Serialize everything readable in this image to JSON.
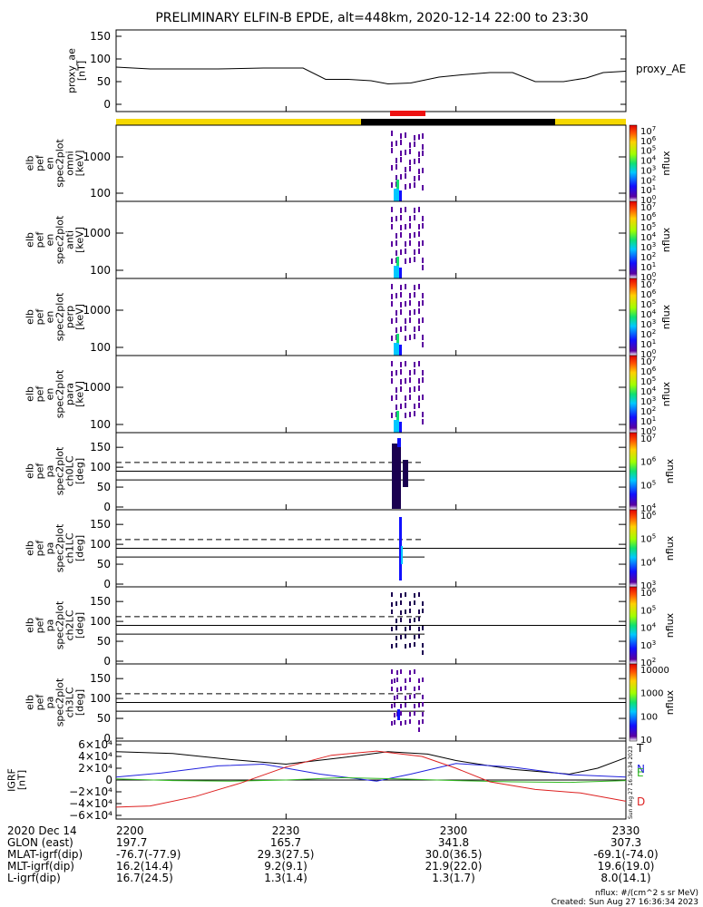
{
  "title": "PRELIMINARY ELFIN-B EPDE, alt=448km, 2020-12-14 22:00 to 23:30",
  "colors": {
    "sunlight": "#f5d800",
    "shadow": "#000000",
    "science": "#ee1111"
  },
  "panels": [
    {
      "id": "proxy_ae",
      "ylabel": [
        "proxy_ae",
        "[nT]"
      ],
      "yticks": [
        "150",
        "100",
        "50",
        "0"
      ],
      "right_label": "proxy_AE"
    },
    {
      "id": "omni",
      "ylabel": [
        "elb",
        "pef",
        "en",
        "spec2plot",
        "omni",
        "[keV]"
      ],
      "yticks": [
        "1000",
        "100"
      ],
      "cbar_ticks": [
        "10",
        "10",
        "10",
        "10",
        "10",
        "10",
        "10",
        "10"
      ],
      "cbar_exps": [
        "7",
        "6",
        "5",
        "4",
        "3",
        "2",
        "1",
        "0"
      ],
      "cbar_label": "nflux"
    },
    {
      "id": "anti",
      "ylabel": [
        "elb",
        "pef",
        "en",
        "spec2plot",
        "anti",
        "[keV]"
      ],
      "yticks": [
        "1000",
        "100"
      ],
      "cbar_ticks": [
        "10",
        "10",
        "10",
        "10",
        "10",
        "10",
        "10",
        "10"
      ],
      "cbar_exps": [
        "7",
        "6",
        "5",
        "4",
        "3",
        "2",
        "1",
        "0"
      ],
      "cbar_label": "nflux"
    },
    {
      "id": "perp",
      "ylabel": [
        "elb",
        "pef",
        "en",
        "spec2plot",
        "perp",
        "[keV]"
      ],
      "yticks": [
        "1000",
        "100"
      ],
      "cbar_ticks": [
        "10",
        "10",
        "10",
        "10",
        "10",
        "10",
        "10",
        "10"
      ],
      "cbar_exps": [
        "7",
        "6",
        "5",
        "4",
        "3",
        "2",
        "1",
        "0"
      ],
      "cbar_label": "nflux"
    },
    {
      "id": "para",
      "ylabel": [
        "elb",
        "pef",
        "en",
        "spec2plot",
        "para",
        "[keV]"
      ],
      "yticks": [
        "1000",
        "100"
      ],
      "cbar_ticks": [
        "10",
        "10",
        "10",
        "10",
        "10",
        "10",
        "10",
        "10"
      ],
      "cbar_exps": [
        "7",
        "6",
        "5",
        "4",
        "3",
        "2",
        "1",
        "0"
      ],
      "cbar_label": "nflux"
    },
    {
      "id": "ch0LC",
      "ylabel": [
        "elb",
        "pef",
        "pa",
        "spec2plot",
        "ch0LC",
        "[deg]"
      ],
      "yticks": [
        "150",
        "100",
        "50",
        "0"
      ],
      "cbar_ticks": [
        "10",
        "10",
        "10",
        "10"
      ],
      "cbar_exps": [
        "7",
        "6",
        "5",
        "4"
      ],
      "cbar_label": "nflux"
    },
    {
      "id": "ch1LC",
      "ylabel": [
        "elb",
        "pef",
        "pa",
        "spec2plot",
        "ch1LC",
        "[deg]"
      ],
      "yticks": [
        "150",
        "100",
        "50",
        "0"
      ],
      "cbar_ticks": [
        "10",
        "10",
        "10",
        "10"
      ],
      "cbar_exps": [
        "6",
        "5",
        "4",
        "3"
      ],
      "cbar_label": "nflux"
    },
    {
      "id": "ch2LC",
      "ylabel": [
        "elb",
        "pef",
        "pa",
        "spec2plot",
        "ch2LC",
        "[deg]"
      ],
      "yticks": [
        "150",
        "100",
        "50",
        "0"
      ],
      "cbar_ticks": [
        "10",
        "10",
        "10",
        "10",
        "10"
      ],
      "cbar_exps": [
        "6",
        "5",
        "4",
        "3",
        "2"
      ],
      "cbar_label": "nflux"
    },
    {
      "id": "ch3LC",
      "ylabel": [
        "elb",
        "pef",
        "pa",
        "spec2plot",
        "ch3LC",
        "[deg]"
      ],
      "yticks": [
        "10000",
        "1000",
        "100",
        "10"
      ],
      "yticks_left": [
        "150",
        "100",
        "50",
        "0"
      ],
      "cbar_label": "nflux"
    },
    {
      "id": "igrf",
      "ylabel": [
        "IGRF",
        "[nT]"
      ],
      "yticks": [
        "6×10⁴",
        "4×10⁴",
        "2×10⁴",
        "0",
        "−2×10⁴",
        "−4×10⁴",
        "−6×10⁴"
      ],
      "legend": [
        "T",
        "N",
        "E",
        "D"
      ]
    }
  ],
  "chart_data": {
    "type": "line",
    "title": "PRELIMINARY ELFIN-B EPDE, alt=448km, 2020-12-14 22:00 to 23:30",
    "x_ticks": [
      "2200",
      "2230",
      "2300",
      "2330"
    ],
    "x_range_minutes": [
      0,
      90
    ],
    "proxy_ae": {
      "ylim": [
        0,
        160
      ],
      "minutes": [
        0,
        3,
        6,
        10,
        18,
        26,
        33,
        37,
        41,
        45,
        48,
        52,
        57,
        61,
        66,
        70,
        74,
        79,
        83,
        86,
        90
      ],
      "values": [
        82,
        80,
        78,
        78,
        78,
        80,
        80,
        55,
        55,
        52,
        45,
        47,
        60,
        65,
        70,
        70,
        50,
        50,
        58,
        70,
        73
      ]
    },
    "igrf_series": [
      {
        "name": "T",
        "color": "#000000",
        "minutes": [
          0,
          10,
          20,
          30,
          40,
          48,
          55,
          60,
          70,
          80,
          85,
          90
        ],
        "values": [
          48000,
          45000,
          35000,
          27000,
          38000,
          48000,
          44000,
          33000,
          18000,
          10000,
          20000,
          38000
        ]
      },
      {
        "name": "N",
        "color": "#2020dd",
        "minutes": [
          0,
          8,
          18,
          26,
          36,
          46,
          52,
          60,
          70,
          80,
          90
        ],
        "values": [
          5000,
          12000,
          24000,
          27000,
          10000,
          -2000,
          10000,
          28000,
          22000,
          9000,
          5000
        ]
      },
      {
        "name": "E",
        "color": "#33bb22",
        "minutes": [
          0,
          10,
          20,
          30,
          40,
          50,
          60,
          70,
          80,
          90
        ],
        "values": [
          2000,
          -1000,
          -2000,
          0,
          4000,
          2000,
          -1000,
          -3000,
          -4000,
          -1000
        ]
      },
      {
        "name": "D",
        "color": "#dd2020",
        "minutes": [
          0,
          6,
          14,
          22,
          30,
          38,
          46,
          54,
          60,
          66,
          74,
          82,
          90
        ],
        "values": [
          -46000,
          -44000,
          -28000,
          -5000,
          22000,
          42000,
          49000,
          40000,
          20000,
          -3000,
          -16000,
          -22000,
          -36000
        ]
      }
    ]
  },
  "footer": {
    "rows": [
      {
        "label": "2020 Dec 14",
        "values": [
          "2200",
          "2230",
          "2300",
          "2330"
        ]
      },
      {
        "label": "GLON (east)",
        "values": [
          "197.7",
          "165.7",
          "341.8",
          "307.3"
        ]
      },
      {
        "label": "MLAT-igrf(dip)",
        "values": [
          "-76.7(-77.9)",
          "29.3(27.5)",
          "30.0(36.5)",
          "-69.1(-74.0)"
        ]
      },
      {
        "label": "MLT-igrf(dip)",
        "values": [
          "16.2(14.4)",
          "9.2(9.1)",
          "21.9(22.0)",
          "19.6(19.0)"
        ]
      },
      {
        "label": "L-igrf(dip)",
        "values": [
          "16.7(24.5)",
          "1.3(1.4)",
          "1.3(1.7)",
          "8.0(14.1)"
        ]
      }
    ],
    "units": "nflux: #/(cm^2 s sr MeV)",
    "created": "Created: Sun Aug 27 16:36:34 2023",
    "side_stamp": "Sun Aug 27 16:36:34 2023"
  }
}
